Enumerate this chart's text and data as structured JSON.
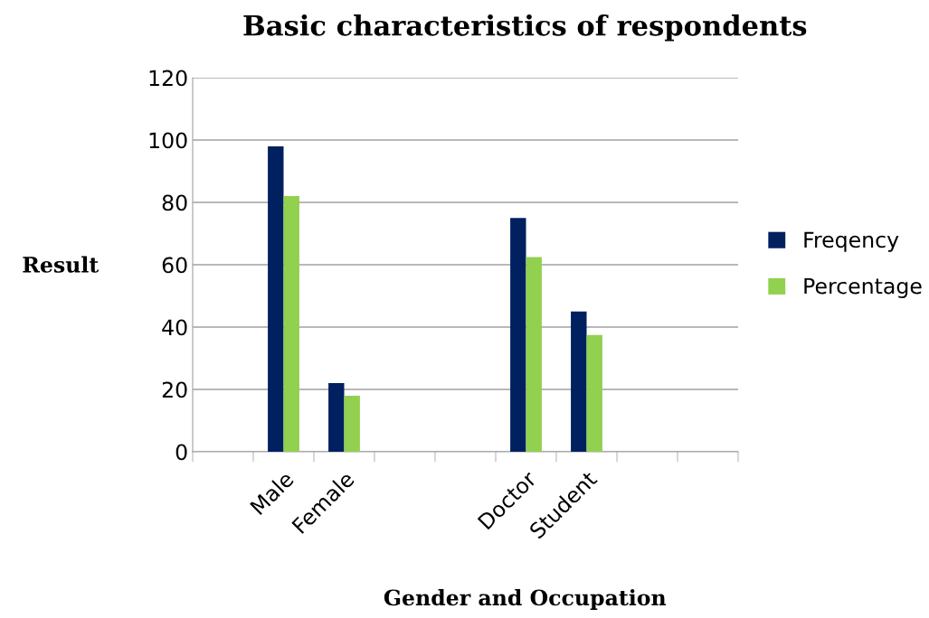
{
  "chart_data": {
    "type": "bar",
    "title": "Basic characteristics of respondents",
    "xlabel": "Gender and Occupation",
    "ylabel": "Result",
    "categories": [
      null,
      "Male",
      "Female",
      null,
      null,
      "Doctor",
      "Student",
      null,
      null
    ],
    "series": [
      {
        "name": "Freqency",
        "color": "#002060",
        "values": [
          null,
          98,
          22,
          null,
          null,
          75,
          45,
          null,
          null
        ]
      },
      {
        "name": "Percentage",
        "color": "#92d050",
        "values": [
          null,
          82,
          18,
          null,
          null,
          62.5,
          37.5,
          null,
          null
        ]
      }
    ],
    "ylim": [
      0,
      120
    ],
    "yticks": [
      0,
      20,
      40,
      60,
      80,
      100,
      120
    ],
    "grid": "y",
    "legend": "right"
  }
}
